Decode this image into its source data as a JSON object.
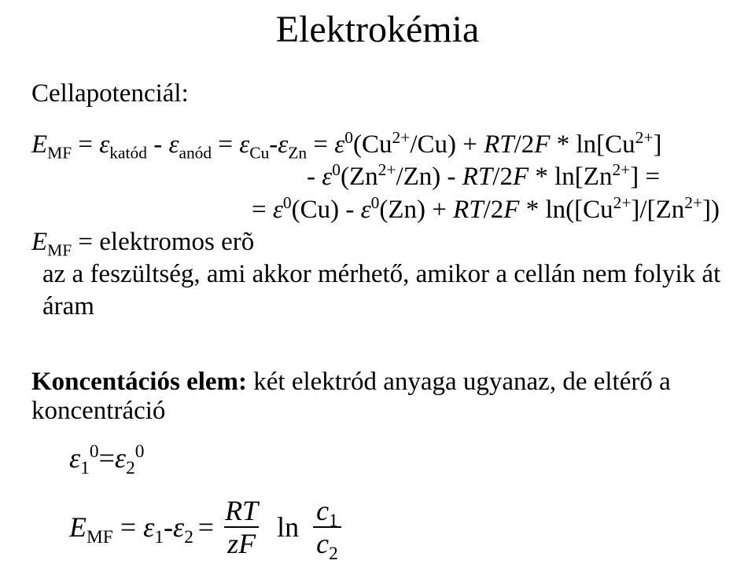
{
  "title": "Elektrokémia",
  "subtitle": "Cellapotenciál:",
  "definition_label": " = elektromos erõ",
  "voltage_note": "az a feszültség, ami akkor mérhető, amikor a cellán nem folyik át áram",
  "section2_title_bold": "Koncentációs elem:",
  "section2_title_rest": " két elektród anyaga ugyanaz, de eltérő a koncentráció",
  "ln_text": "ln",
  "colors": {
    "text": "#000000",
    "background": "#ffffff"
  },
  "fonts": {
    "body_family": "Times New Roman",
    "title_size_pt": 36,
    "body_size_pt": 25
  }
}
